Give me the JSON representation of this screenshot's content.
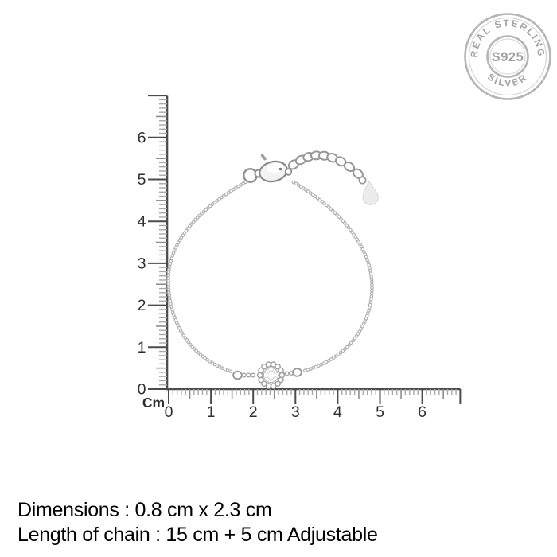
{
  "page": {
    "background": "#ffffff",
    "type": "jewellery-product-measurement-image"
  },
  "seal": {
    "top_text": "REAL STERLING",
    "center_text": "S925",
    "bottom_text": "SILVER",
    "ring_color": "#b5b5b5",
    "faint_ring_color": "#d6d6d6",
    "text_color": "#a3a3a3"
  },
  "ruler": {
    "unit_label": "Cm",
    "vertical_labels": [
      "0",
      "1",
      "2",
      "3",
      "4",
      "5",
      "6"
    ],
    "horizontal_labels": [
      "0",
      "1",
      "2",
      "3",
      "4",
      "5",
      "6"
    ],
    "line_color": "#4b4b4b",
    "medium_tick_color": "#8d8d8d",
    "minor_tick_color": "#a8a8a8",
    "label_color": "#2e2e2e"
  },
  "product": {
    "name": "sterling silver chain bracelet with crystal flower charm, lobster clasp, extender chain and teardrop tag",
    "chain_color": "#b0b0b0",
    "metal_edge_color": "#8f8f8f",
    "metal_fill_color": "#f3f3f3",
    "tag_fill_color": "#ececec",
    "tag_edge_color": "#d7d7d7",
    "facet_color": "#cfcfcf"
  },
  "details": {
    "line1": "Dimensions : 0.8 cm x 2.3 cm",
    "line2": "Length of chain : 15 cm + 5 cm Adjustable"
  }
}
